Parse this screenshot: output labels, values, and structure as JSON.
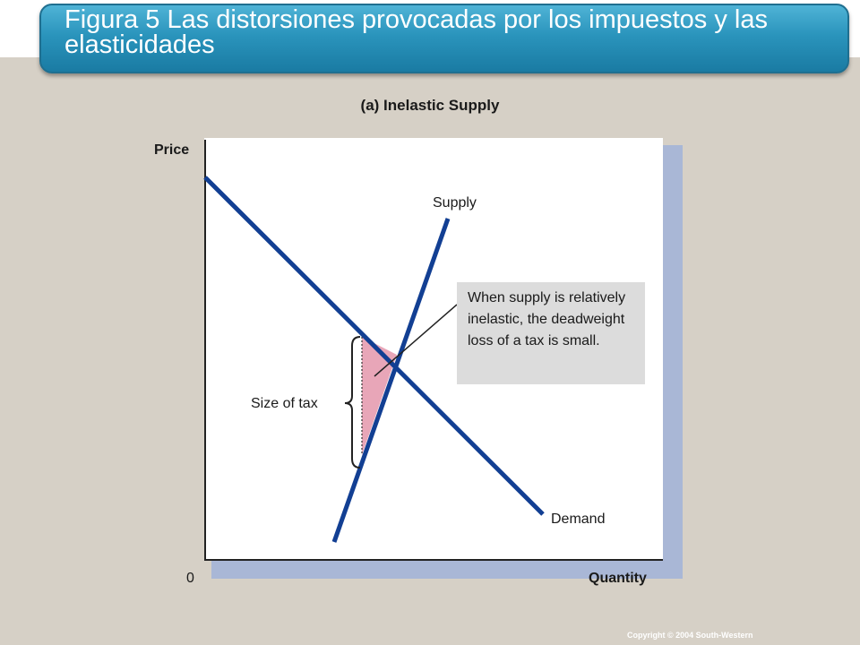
{
  "title": "Figura 5 Las distorsiones provocadas por los impuestos y las elasticidades",
  "panel_title": "(a) Inelastic Supply",
  "axes": {
    "y_label": "Price",
    "x_label": "Quantity",
    "origin_label": "0"
  },
  "curves": {
    "supply_label": "Supply",
    "demand_label": "Demand"
  },
  "tax_label": "Size of tax",
  "callout": "When supply is relatively inelastic, the deadweight loss of a tax is small.",
  "copyright": "Copyright © 2004 South-Western",
  "colors": {
    "curve": "#123f93",
    "deadweight_loss": "#e8a6b8",
    "title_bar": "#2a94bc"
  }
}
